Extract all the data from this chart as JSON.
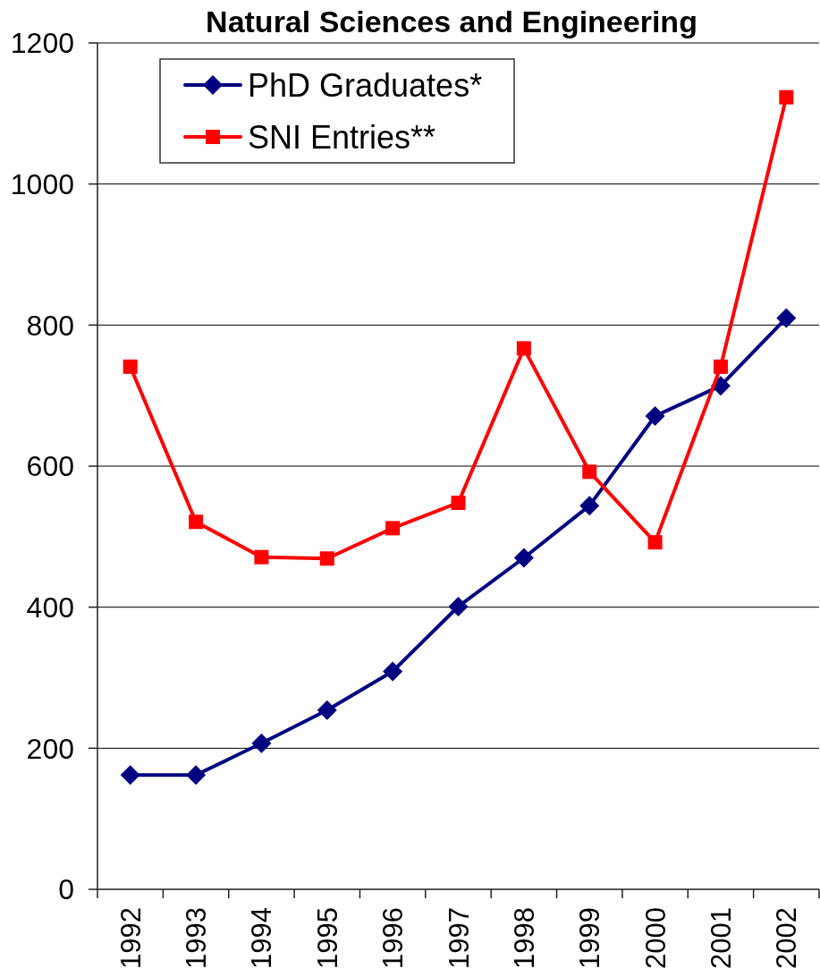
{
  "chart_data": {
    "type": "line",
    "title": "Natural Sciences and Engineering",
    "categories": [
      "1992",
      "1993",
      "1994",
      "1995",
      "1996",
      "1997",
      "1998",
      "1999",
      "2000",
      "2001",
      "2002"
    ],
    "series": [
      {
        "name": "PhD Graduates*",
        "color": "#000080",
        "marker": "diamond",
        "values": [
          162,
          162,
          207,
          254,
          309,
          401,
          470,
          544,
          671,
          714,
          810
        ]
      },
      {
        "name": "SNI Entries**",
        "color": "#ff0000",
        "marker": "square",
        "values": [
          741,
          521,
          471,
          469,
          512,
          548,
          767,
          592,
          492,
          741,
          1123
        ]
      }
    ],
    "ylim": [
      0,
      1200
    ],
    "yticks": [
      0,
      200,
      400,
      600,
      800,
      1000,
      1200
    ],
    "grid": "y",
    "legend": "top left"
  }
}
